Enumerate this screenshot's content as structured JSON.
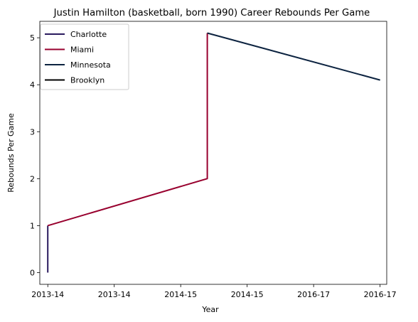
{
  "chart_data": {
    "type": "line",
    "title": "Justin Hamilton (basketball, born 1990) Career Rebounds Per Game",
    "xlabel": "Year",
    "ylabel": "Rebounds Per Game",
    "x_tick_labels": [
      "2013-14",
      "2013-14",
      "2014-15",
      "2014-15",
      "2016-17",
      "2016-17"
    ],
    "x_ticks": [
      0,
      1,
      2,
      3,
      4,
      5
    ],
    "xlim": [
      -0.12,
      5.1
    ],
    "ylim": [
      -0.25,
      5.35
    ],
    "y_ticks": [
      0,
      1,
      2,
      3,
      4,
      5
    ],
    "grid": false,
    "legend_position": "upper-left",
    "series": [
      {
        "name": "Charlotte",
        "color": "#2a1a5e",
        "points": [
          [
            0,
            0
          ],
          [
            0,
            1
          ]
        ]
      },
      {
        "name": "Miami",
        "color": "#98002e",
        "points": [
          [
            0,
            1
          ],
          [
            2.4,
            2.0
          ],
          [
            2.4,
            5.1
          ]
        ]
      },
      {
        "name": "Minnesota",
        "color": "#0c2340",
        "points": [
          [
            2.4,
            5.1
          ],
          [
            5,
            4.1
          ]
        ]
      },
      {
        "name": "Brooklyn",
        "color": "#000000",
        "points": []
      }
    ]
  }
}
